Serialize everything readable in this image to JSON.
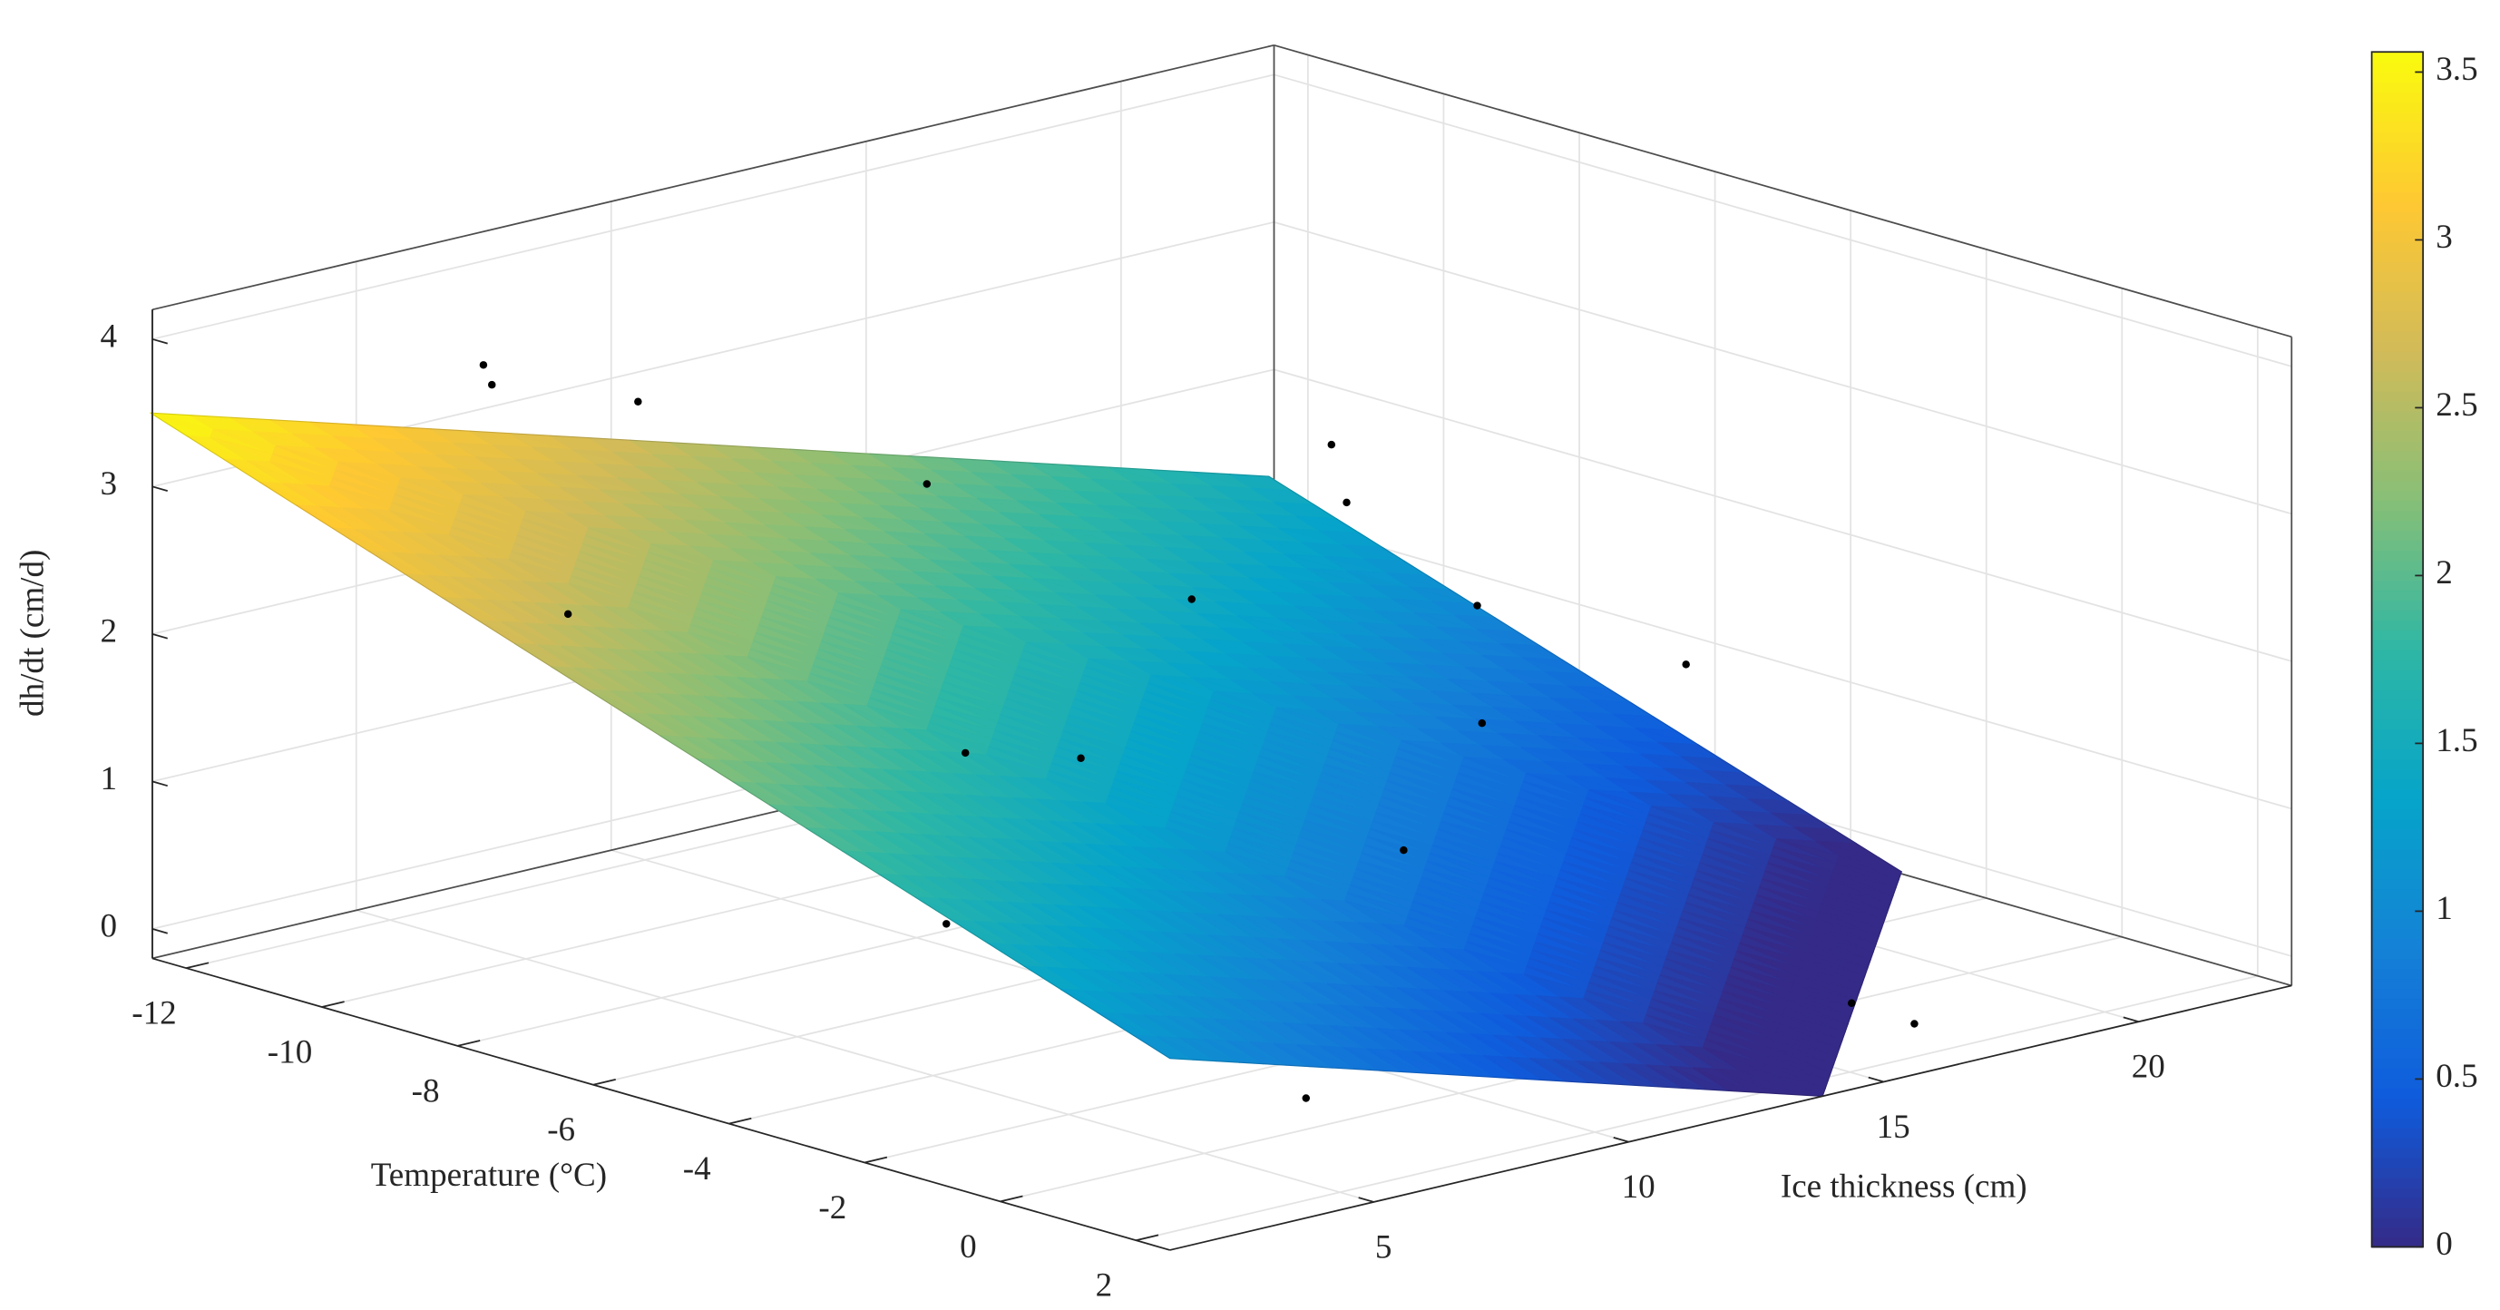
{
  "chart_data": {
    "type": "surface3d",
    "xlabel": "Temperature (°C)",
    "ylabel": "Ice thickness (cm)",
    "zlabel": "dh/dt (cm/d)",
    "xlim": [
      -12.5,
      2.5
    ],
    "ylim": [
      1,
      23
    ],
    "zlim": [
      -0.2,
      4.2
    ],
    "xticks": [
      -12,
      -10,
      -8,
      -6,
      -4,
      -2,
      0,
      2
    ],
    "yticks": [
      5,
      10,
      15,
      20
    ],
    "zticks": [
      0,
      1,
      2,
      3,
      4
    ],
    "grid": true,
    "colormap": "parula",
    "clim": [
      0,
      3.56
    ],
    "colorbar_ticks": [
      0,
      0.5,
      1,
      1.5,
      2,
      2.5,
      3,
      3.5
    ],
    "surface": {
      "x": [
        -12.3,
        -11.6,
        -3.1,
        2.5,
        2.5
      ],
      "y": [
        0.7,
        21.7,
        22.8,
        13.8,
        1
      ],
      "z": [
        3.55,
        1.5,
        -0.15,
        -0.2,
        1.1
      ]
    },
    "points": {
      "color": "#000000",
      "x": [
        -10.4,
        -10.2,
        -10.0,
        -9.5,
        -7.8,
        -7.4,
        -5.4,
        -4.9,
        -3.2,
        -10.0,
        -9.1,
        -7.4,
        -5.3,
        -5.6,
        -3.9,
        1.2,
        0.9,
        1.9
      ],
      "y": [
        4.7,
        4.6,
        7.2,
        12.2,
        2.9,
        14.6,
        7.5,
        9.1,
        4.2,
        20.8,
        19.9,
        20.2,
        17.5,
        21.9,
        14.1,
        5.4,
        16.5,
        16.4
      ],
      "z": [
        3.8,
        3.7,
        3.4,
        2.5,
        2.6,
        1.8,
        1.6,
        1.5,
        1.0,
        2.0,
        1.8,
        1.3,
        1.0,
        1.0,
        0.6,
        0.3,
        0.0,
        0.0
      ]
    }
  }
}
